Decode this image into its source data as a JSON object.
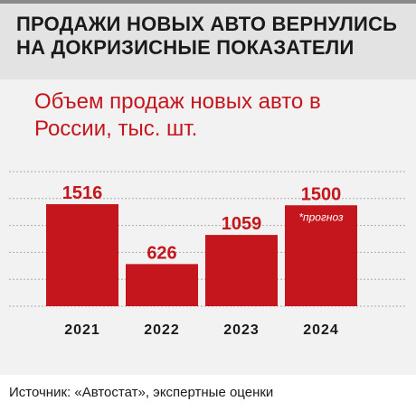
{
  "header": {
    "headline": "Продажи новых авто вернулись на докризисные показатели"
  },
  "chart_data": {
    "type": "bar",
    "title": "Объем продаж новых авто в России, тыс. шт.",
    "categories": [
      "2021",
      "2022",
      "2023",
      "2024"
    ],
    "values": [
      1516,
      626,
      1059,
      1500
    ],
    "annotations": [
      "",
      "",
      "",
      "*прогноз"
    ],
    "ylim": [
      0,
      2000
    ],
    "grid": true,
    "bar_color": "#c4161c",
    "xlabel": "",
    "ylabel": ""
  },
  "source": {
    "text": "Источник: «Автостат», экспертные оценки"
  }
}
